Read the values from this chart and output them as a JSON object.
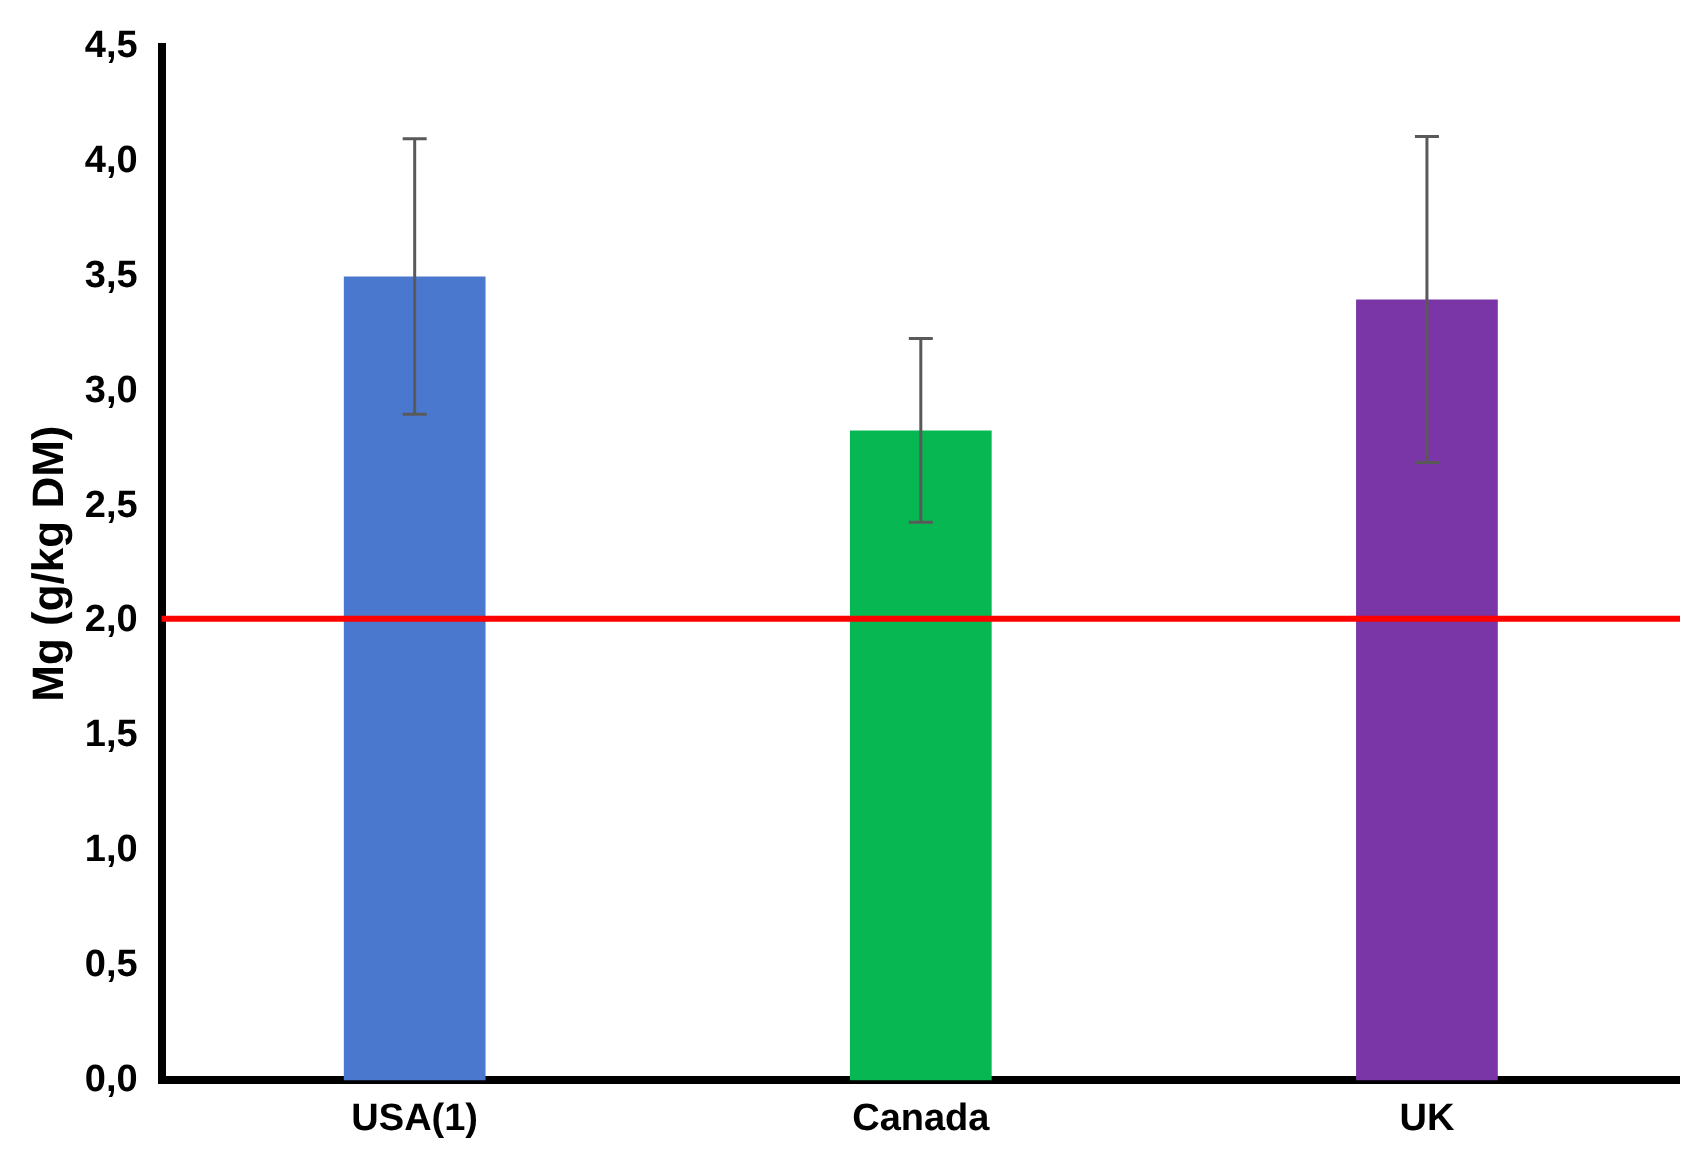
{
  "chart_data": {
    "type": "bar",
    "ylabel": "Mg (g/kg DM)",
    "categories": [
      "USA(1)",
      "Canada",
      "UK"
    ],
    "values": [
      3.5,
      2.83,
      3.4
    ],
    "colors": [
      "#4a78cf",
      "#07b852",
      "#7a35a6"
    ],
    "errors": [
      0.6,
      0.4,
      [
        2.69,
        4.11
      ]
    ],
    "ylim": [
      0,
      4.5
    ],
    "yticks": [
      {
        "value": 0,
        "label": "0,0"
      },
      {
        "value": 0.5,
        "label": "0,5"
      },
      {
        "value": 1,
        "label": "1,0"
      },
      {
        "value": 1.5,
        "label": "1,5"
      },
      {
        "value": 2,
        "label": "2,0"
      },
      {
        "value": 2.5,
        "label": "2,5"
      },
      {
        "value": 3,
        "label": "3,0"
      },
      {
        "value": 3.5,
        "label": "3,5"
      },
      {
        "value": 4,
        "label": "4,0"
      },
      {
        "value": 4.5,
        "label": "4,5"
      }
    ],
    "ref_lines": [
      {
        "axis": "y",
        "value": 2.01,
        "color": "#ff0000"
      }
    ],
    "grid": false,
    "legend": false
  }
}
